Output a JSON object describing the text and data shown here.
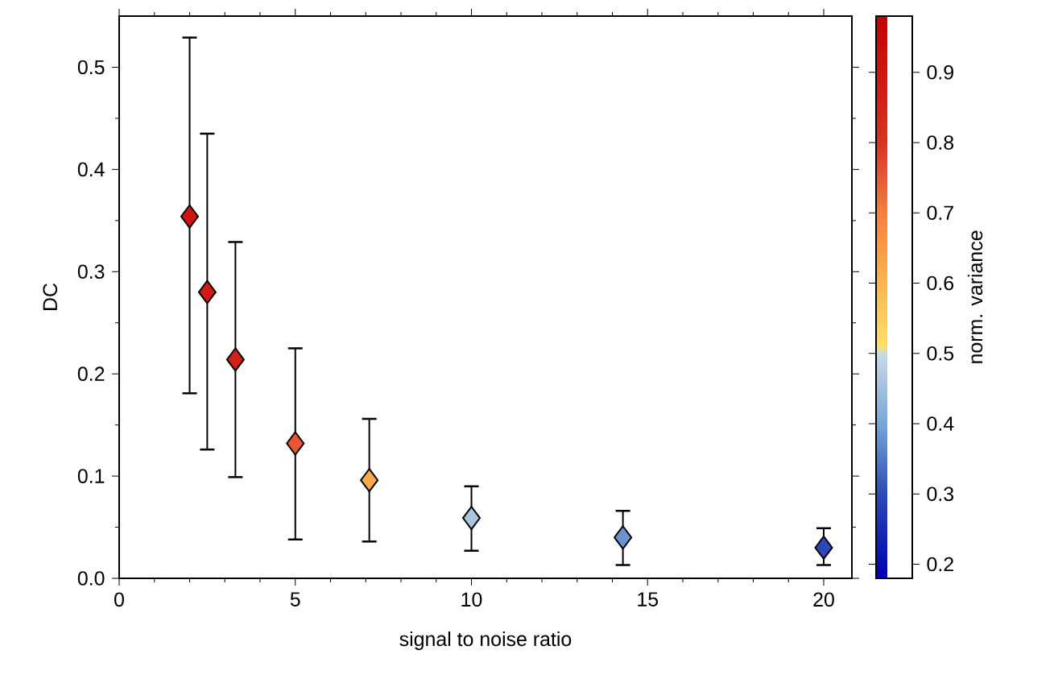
{
  "chart_data": {
    "type": "scatter",
    "xlabel": "signal to noise ratio",
    "ylabel": "DC",
    "clabel": "norm. variance",
    "x": [
      2,
      2.5,
      3.3,
      5,
      7.1,
      10,
      14.3,
      20
    ],
    "values": [
      0.354,
      0.28,
      0.214,
      0.132,
      0.096,
      0.059,
      0.04,
      0.03
    ],
    "errors": [
      [
        0.181,
        0.529
      ],
      [
        0.126,
        0.435
      ],
      [
        0.099,
        0.329
      ],
      [
        0.038,
        0.225
      ],
      [
        0.036,
        0.156
      ],
      [
        0.027,
        0.09
      ],
      [
        0.013,
        0.066
      ],
      [
        0.013,
        0.049
      ]
    ],
    "cvalues": [
      0.9,
      0.88,
      0.86,
      0.75,
      0.62,
      0.46,
      0.38,
      0.3
    ],
    "clim": [
      0.18,
      0.98
    ],
    "cticks": [
      0.2,
      0.3,
      0.4,
      0.5,
      0.6,
      0.7,
      0.8,
      0.9
    ],
    "marker": "diamond",
    "xlim": [
      0,
      20.8
    ],
    "xticks": [
      0,
      5,
      10,
      15,
      20
    ],
    "ylim": [
      0,
      0.55
    ],
    "yticks": [
      {
        "value": 0,
        "label": "0.0"
      },
      0.1,
      0.2,
      0.3,
      0.4,
      0.5
    ]
  }
}
